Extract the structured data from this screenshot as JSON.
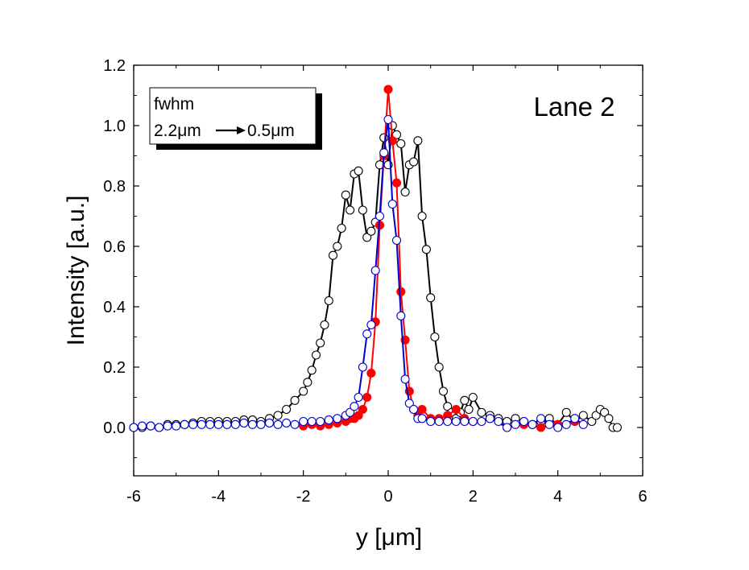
{
  "chart_data": {
    "type": "scatter",
    "xlabel": "y [μm]",
    "ylabel": "Intensity [a.u.]",
    "annotation": "Lane 2",
    "legend": {
      "line1": "fwhm",
      "from": "2.2μm",
      "to": "0.5μm",
      "placement": "top-left",
      "shadow": true
    },
    "xlim": [
      -6,
      6
    ],
    "ylim": [
      -0.16,
      1.2
    ],
    "xticks": [
      -6,
      -4,
      -2,
      0,
      2,
      4,
      6
    ],
    "yticks": [
      0.0,
      0.2,
      0.4,
      0.6,
      0.8,
      1.0,
      1.2
    ],
    "xtick_labels": [
      "-6",
      "-4",
      "-2",
      "0",
      "2",
      "4",
      "6"
    ],
    "ytick_labels": [
      "0.0",
      "0.2",
      "0.4",
      "0.6",
      "0.8",
      "1.0",
      "1.2"
    ],
    "grid": false,
    "series": [
      {
        "id": "wide",
        "color": "#000000",
        "marker": "open-circle",
        "x": [
          -6.0,
          -5.8,
          -5.6,
          -5.4,
          -5.2,
          -5.0,
          -4.8,
          -4.6,
          -4.4,
          -4.2,
          -4.0,
          -3.8,
          -3.6,
          -3.4,
          -3.2,
          -3.0,
          -2.8,
          -2.6,
          -2.4,
          -2.2,
          -2.0,
          -1.9,
          -1.8,
          -1.7,
          -1.6,
          -1.5,
          -1.4,
          -1.3,
          -1.2,
          -1.1,
          -1.0,
          -0.9,
          -0.8,
          -0.7,
          -0.6,
          -0.5,
          -0.4,
          -0.3,
          -0.2,
          -0.1,
          0.0,
          0.1,
          0.2,
          0.3,
          0.4,
          0.5,
          0.6,
          0.7,
          0.8,
          0.9,
          1.0,
          1.1,
          1.2,
          1.3,
          1.4,
          1.5,
          1.6,
          1.7,
          1.8,
          1.9,
          2.0,
          2.2,
          2.4,
          2.6,
          2.8,
          3.0,
          3.2,
          3.4,
          3.6,
          3.8,
          4.0,
          4.2,
          4.4,
          4.6,
          4.8,
          4.9,
          5.0,
          5.1,
          5.2,
          5.3,
          5.4
        ],
        "y": [
          0.0,
          0.0,
          0.005,
          0.0,
          0.01,
          0.01,
          0.01,
          0.015,
          0.02,
          0.02,
          0.02,
          0.02,
          0.02,
          0.025,
          0.025,
          0.02,
          0.03,
          0.04,
          0.06,
          0.09,
          0.12,
          0.15,
          0.19,
          0.24,
          0.28,
          0.34,
          0.42,
          0.57,
          0.6,
          0.66,
          0.77,
          0.72,
          0.84,
          0.85,
          0.72,
          0.63,
          0.65,
          0.68,
          0.87,
          0.96,
          0.87,
          1.0,
          0.97,
          0.94,
          0.78,
          0.87,
          0.88,
          0.95,
          0.7,
          0.59,
          0.43,
          0.3,
          0.2,
          0.12,
          0.07,
          0.05,
          0.03,
          0.05,
          0.09,
          0.06,
          0.1,
          0.05,
          0.04,
          0.03,
          0.02,
          0.03,
          0.02,
          0.01,
          0.02,
          0.03,
          0.01,
          0.05,
          0.02,
          0.04,
          0.02,
          0.04,
          0.06,
          0.05,
          0.03,
          0.0,
          0.0
        ]
      },
      {
        "id": "narrow-red",
        "color": "#ff0000",
        "marker": "filled-circle",
        "x": [
          -2.0,
          -1.8,
          -1.6,
          -1.4,
          -1.2,
          -1.0,
          -0.9,
          -0.8,
          -0.7,
          -0.6,
          -0.5,
          -0.4,
          -0.3,
          -0.2,
          -0.1,
          0.0,
          0.1,
          0.2,
          0.3,
          0.4,
          0.5,
          0.6,
          0.7,
          0.8,
          1.0,
          1.2,
          1.4,
          1.6,
          1.8,
          2.0,
          2.4,
          2.8,
          3.2,
          3.6,
          4.0,
          4.4
        ],
        "y": [
          0.005,
          0.01,
          0.005,
          0.01,
          0.015,
          0.02,
          0.03,
          0.03,
          0.04,
          0.06,
          0.1,
          0.18,
          0.35,
          0.67,
          0.9,
          1.12,
          0.95,
          0.81,
          0.45,
          0.29,
          0.12,
          0.06,
          0.04,
          0.06,
          0.03,
          0.03,
          0.04,
          0.06,
          0.03,
          0.02,
          0.03,
          0.0,
          0.01,
          0.0,
          0.01,
          0.02
        ]
      },
      {
        "id": "narrow-blue",
        "color": "#0000cc",
        "marker": "open-circle",
        "x": [
          -6.0,
          -5.8,
          -5.6,
          -5.4,
          -5.2,
          -5.0,
          -4.8,
          -4.6,
          -4.4,
          -4.2,
          -4.0,
          -3.8,
          -3.6,
          -3.4,
          -3.2,
          -3.0,
          -2.8,
          -2.6,
          -2.4,
          -2.2,
          -2.0,
          -1.8,
          -1.6,
          -1.4,
          -1.2,
          -1.0,
          -0.9,
          -0.8,
          -0.7,
          -0.6,
          -0.5,
          -0.4,
          -0.3,
          -0.2,
          -0.1,
          0.0,
          0.1,
          0.2,
          0.3,
          0.4,
          0.5,
          0.6,
          0.7,
          0.8,
          1.0,
          1.2,
          1.4,
          1.6,
          1.8,
          2.0,
          2.2,
          2.4,
          2.6,
          2.8,
          3.0,
          3.2,
          3.4,
          3.6,
          3.8,
          4.0,
          4.2,
          4.4,
          4.6
        ],
        "y": [
          0.0,
          0.005,
          0.005,
          0.0,
          0.005,
          0.005,
          0.01,
          0.01,
          0.01,
          0.01,
          0.01,
          0.01,
          0.01,
          0.015,
          0.01,
          0.01,
          0.015,
          0.01,
          0.015,
          0.01,
          0.02,
          0.02,
          0.02,
          0.025,
          0.03,
          0.04,
          0.05,
          0.07,
          0.1,
          0.2,
          0.31,
          0.34,
          0.52,
          0.7,
          0.91,
          1.02,
          0.74,
          0.62,
          0.37,
          0.16,
          0.08,
          0.06,
          0.03,
          0.03,
          0.02,
          0.02,
          0.02,
          0.02,
          0.02,
          0.02,
          0.02,
          0.03,
          0.02,
          0.0,
          0.01,
          0.02,
          0.01,
          0.03,
          0.01,
          0.0,
          0.01,
          0.03,
          0.01
        ]
      }
    ]
  }
}
